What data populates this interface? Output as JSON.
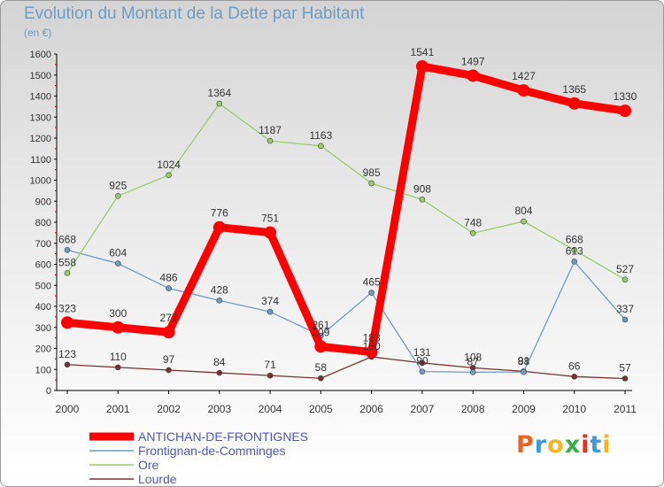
{
  "header": {
    "title": "Evolution du Montant de la Dette par Habitant",
    "subtitle": "(en €)"
  },
  "brand": {
    "letters": [
      "P",
      "r",
      "o",
      "x",
      "i",
      "t",
      "i"
    ],
    "colors": [
      "#e8641f",
      "#3b9bd8",
      "#f3b523",
      "#3fae49",
      "#e2322a",
      "#3b9bd8",
      "#f3b523"
    ]
  },
  "chart_data": {
    "type": "line",
    "title": "Evolution du Montant de la Dette par Habitant",
    "subtitle": "(en €)",
    "x": [
      "2000",
      "2001",
      "2002",
      "2003",
      "2004",
      "2005",
      "2006",
      "2007",
      "2008",
      "2009",
      "2010",
      "2011"
    ],
    "ylim": [
      0,
      1600
    ],
    "yticks": [
      0,
      100,
      200,
      300,
      400,
      500,
      600,
      700,
      800,
      900,
      1000,
      1100,
      1200,
      1300,
      1400,
      1500,
      1600
    ],
    "grid": false,
    "legend_position": "bottom-left",
    "series": [
      {
        "name": "ANTICHAN-DE-FRONTIGNES",
        "color": "#ff0000",
        "values": [
          323,
          300,
          277,
          776,
          751,
          209,
          183,
          1541,
          1497,
          1427,
          1365,
          1330
        ]
      },
      {
        "name": "Frontignan-de-Comminges",
        "color": "#6f9ac6",
        "values": [
          668,
          604,
          486,
          428,
          374,
          261,
          465,
          90,
          87,
          88,
          613,
          337
        ]
      },
      {
        "name": "Ore",
        "color": "#99cc66",
        "values": [
          558,
          925,
          1024,
          1364,
          1187,
          1163,
          985,
          908,
          748,
          804,
          668,
          527
        ]
      },
      {
        "name": "Lourde",
        "color": "#7b3030",
        "values": [
          123,
          110,
          97,
          84,
          71,
          58,
          160,
          131,
          108,
          91,
          66,
          57
        ]
      }
    ]
  }
}
